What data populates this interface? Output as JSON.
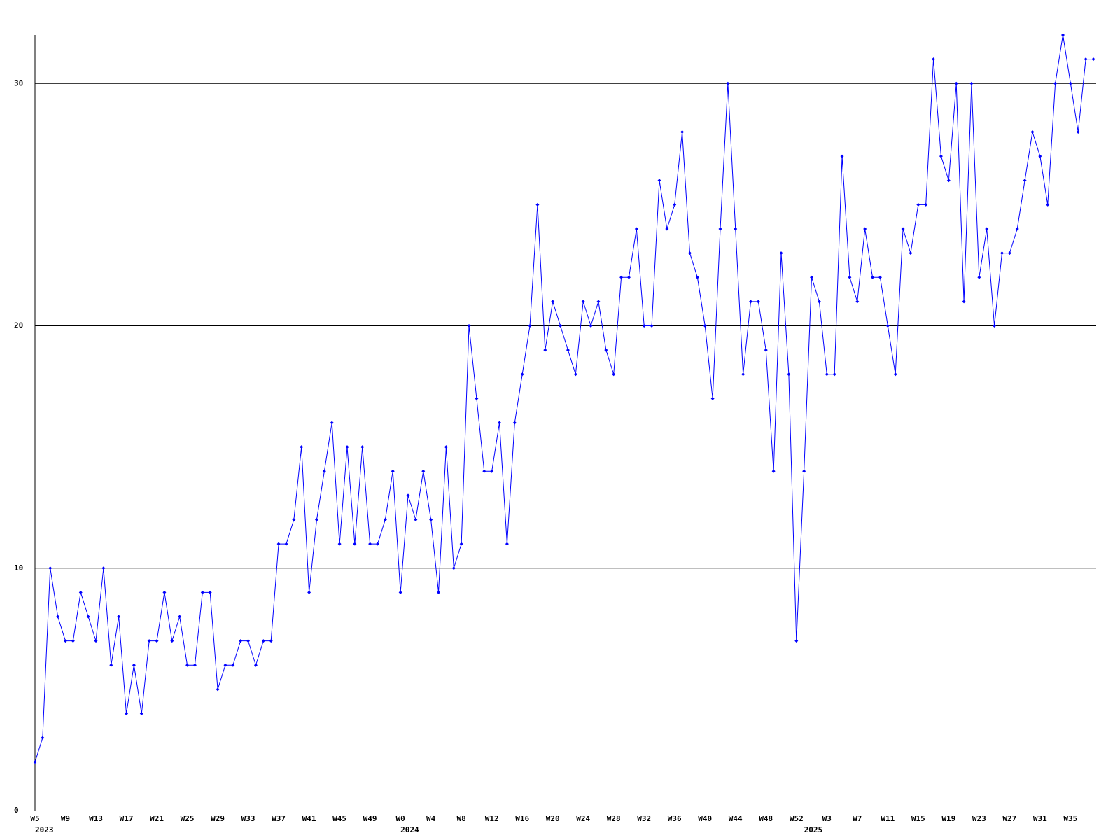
{
  "chart_data": {
    "type": "line",
    "categories": [
      "W5",
      null,
      null,
      null,
      "W9",
      null,
      null,
      null,
      "W13",
      null,
      null,
      null,
      "W17",
      null,
      null,
      null,
      "W21",
      null,
      null,
      null,
      "W25",
      null,
      null,
      null,
      "W29",
      null,
      null,
      null,
      "W33",
      null,
      null,
      null,
      "W37",
      null,
      null,
      null,
      "W41",
      null,
      null,
      null,
      "W45",
      null,
      null,
      null,
      "W49",
      null,
      null,
      null,
      "W0",
      null,
      null,
      null,
      "W4",
      null,
      null,
      null,
      "W8",
      null,
      null,
      null,
      "W12",
      null,
      null,
      null,
      "W16",
      null,
      null,
      null,
      "W20",
      null,
      null,
      null,
      "W24",
      null,
      null,
      null,
      "W28",
      null,
      null,
      null,
      "W32",
      null,
      null,
      null,
      "W36",
      null,
      null,
      null,
      "W40",
      null,
      null,
      null,
      "W44",
      null,
      null,
      null,
      "W48",
      null,
      null,
      null,
      "W52",
      null,
      null,
      null,
      "W3",
      null,
      null,
      null,
      "W7",
      null,
      null,
      null,
      "W11",
      null,
      null,
      null,
      "W15",
      null,
      null,
      null,
      "W19",
      null,
      null,
      null,
      "W23",
      null,
      null,
      null,
      "W27",
      null,
      null,
      null,
      "W31",
      null,
      null,
      null,
      "W35",
      null,
      null,
      null
    ],
    "x_years": [
      "2023",
      null,
      null,
      null,
      null,
      null,
      null,
      null,
      null,
      null,
      null,
      null,
      null,
      null,
      null,
      null,
      null,
      null,
      null,
      null,
      null,
      null,
      null,
      null,
      null,
      null,
      null,
      null,
      null,
      null,
      null,
      null,
      null,
      null,
      null,
      null,
      null,
      null,
      null,
      null,
      null,
      null,
      null,
      null,
      null,
      null,
      null,
      null,
      "2024",
      null,
      null,
      null,
      null,
      null,
      null,
      null,
      null,
      null,
      null,
      null,
      null,
      null,
      null,
      null,
      null,
      null,
      null,
      null,
      null,
      null,
      null,
      null,
      null,
      null,
      null,
      null,
      null,
      null,
      null,
      null,
      null,
      null,
      null,
      null,
      null,
      null,
      null,
      null,
      null,
      null,
      null,
      null,
      null,
      null,
      null,
      null,
      null,
      null,
      null,
      null,
      null,
      "2025",
      null,
      null,
      null,
      null,
      null,
      null,
      null,
      null,
      null,
      null,
      null,
      null,
      null,
      null,
      null,
      null,
      null,
      null,
      null,
      null,
      null,
      null,
      null,
      null,
      null,
      null,
      null,
      null,
      null,
      null,
      null,
      null,
      null,
      null,
      null,
      null,
      null,
      null
    ],
    "series": [
      {
        "color": "#0000ff",
        "values": [
          2,
          3,
          10,
          8,
          7,
          7,
          9,
          8,
          7,
          10,
          6,
          8,
          4,
          6,
          4,
          7,
          7,
          9,
          7,
          8,
          6,
          6,
          9,
          9,
          5,
          6,
          6,
          7,
          7,
          6,
          7,
          7,
          11,
          11,
          12,
          15,
          9,
          12,
          14,
          16,
          11,
          15,
          11,
          15,
          11,
          11,
          12,
          14,
          9,
          13,
          12,
          14,
          12,
          9,
          15,
          10,
          11,
          20,
          17,
          14,
          14,
          16,
          11,
          16,
          18,
          20,
          25,
          19,
          21,
          20,
          19,
          18,
          21,
          20,
          21,
          19,
          18,
          22,
          22,
          24,
          20,
          20,
          26,
          24,
          25,
          28,
          23,
          22,
          20,
          17,
          24,
          30,
          24,
          18,
          21,
          21,
          19,
          14,
          23,
          18,
          7,
          14,
          22,
          21,
          18,
          18,
          27,
          22,
          21,
          24,
          22,
          22,
          20,
          18,
          24,
          23,
          25,
          25,
          31,
          27,
          26,
          30,
          21,
          30,
          22,
          24,
          20,
          23,
          23,
          24,
          26,
          28,
          27,
          25,
          30,
          32,
          30,
          28,
          31,
          31
        ]
      }
    ],
    "ylim": [
      0,
      32
    ],
    "yticks": [
      0,
      10,
      20,
      30
    ],
    "grid": true
  }
}
